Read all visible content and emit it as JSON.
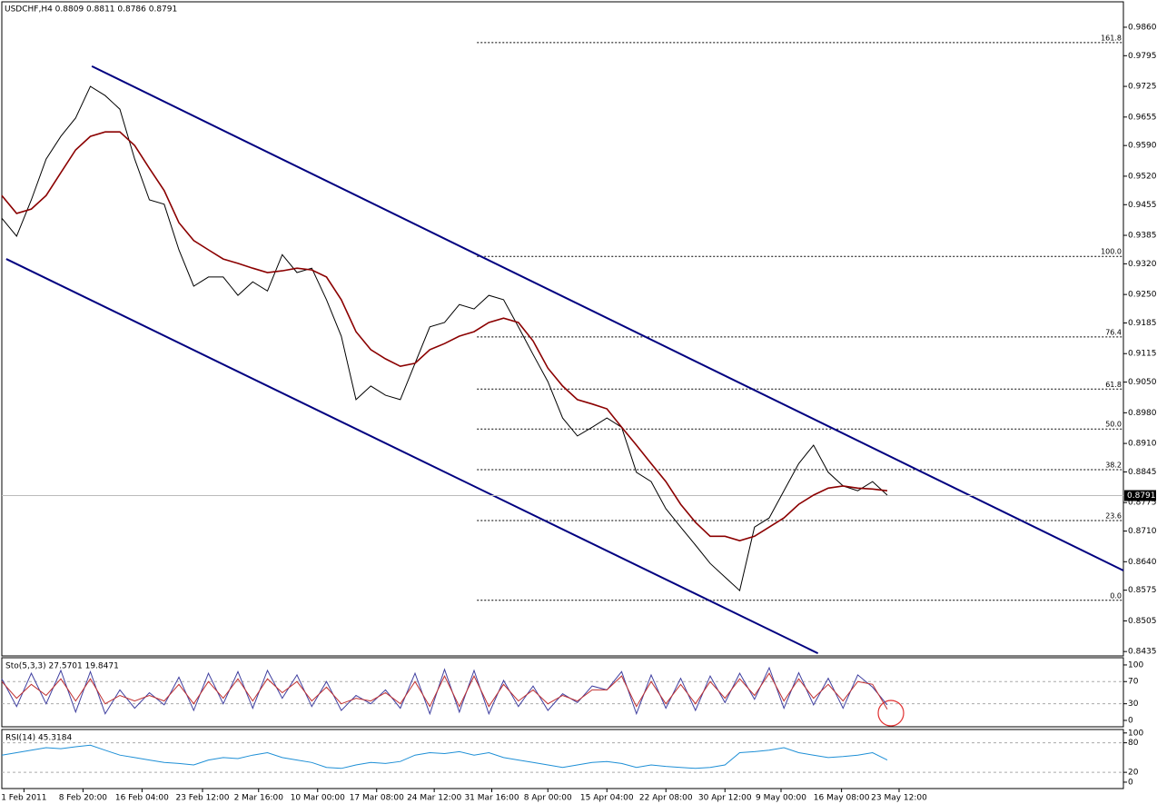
{
  "chart_data": [
    {
      "type": "line",
      "title": "USDCHF,H4  0.8809 0.8811 0.8786 0.8791",
      "x": [
        0,
        1,
        2,
        3,
        4,
        5,
        6,
        7,
        8,
        9,
        10,
        11,
        12,
        13,
        14,
        15,
        16,
        17,
        18,
        19,
        20,
        21,
        22,
        23,
        24,
        25,
        26,
        27,
        28,
        29,
        30,
        31,
        32,
        33,
        34,
        35,
        36,
        37,
        38,
        39,
        40,
        41,
        42,
        43,
        44,
        45,
        46,
        47,
        48,
        49,
        50,
        51,
        52,
        53,
        54,
        55,
        56,
        57,
        58,
        59,
        60
      ],
      "xlim": [
        0,
        76
      ],
      "xticks": [
        {
          "value": 1.5,
          "label": "1 Feb 2011"
        },
        {
          "value": 5.5,
          "label": "8 Feb 20:00"
        },
        {
          "value": 9.5,
          "label": "16 Feb 04:00"
        },
        {
          "value": 13.6,
          "label": "23 Feb 12:00"
        },
        {
          "value": 17.4,
          "label": "2 Mar 16:00"
        },
        {
          "value": 21.4,
          "label": "10 Mar 00:00"
        },
        {
          "value": 25.4,
          "label": "17 Mar 08:00"
        },
        {
          "value": 29.3,
          "label": "24 Mar 12:00"
        },
        {
          "value": 33.2,
          "label": "31 Mar 16:00"
        },
        {
          "value": 37.0,
          "label": "8 Apr 00:00"
        },
        {
          "value": 41.0,
          "label": "15 Apr 04:00"
        },
        {
          "value": 45.0,
          "label": "22 Apr 08:00"
        },
        {
          "value": 49.0,
          "label": "30 Apr 12:00"
        },
        {
          "value": 52.8,
          "label": "9 May 00:00"
        },
        {
          "value": 56.9,
          "label": "16 May 08:00"
        },
        {
          "value": 60.8,
          "label": "23 May 12:00"
        }
      ],
      "ylim": [
        0.8425,
        0.9918
      ],
      "yticks": [
        {
          "value": 0.986,
          "label": "0.9860"
        },
        0.9795,
        0.9725,
        0.9655,
        {
          "value": 0.959,
          "label": "0.9590"
        },
        {
          "value": 0.952,
          "label": "0.9520"
        },
        0.9455,
        0.9385,
        {
          "value": 0.932,
          "label": "0.9320"
        },
        {
          "value": 0.925,
          "label": "0.9250"
        },
        0.9185,
        0.9115,
        {
          "value": 0.905,
          "label": "0.9050"
        },
        {
          "value": 0.898,
          "label": "0.8980"
        },
        {
          "value": 0.891,
          "label": "0.8910"
        },
        0.8845,
        0.8775,
        {
          "value": 0.871,
          "label": "0.8710"
        },
        {
          "value": 0.864,
          "label": "0.8640"
        },
        0.8575,
        0.8505,
        0.8435
      ],
      "series": [
        {
          "color": "#000000",
          "values": [
            0.9424,
            0.9383,
            0.9466,
            0.9559,
            0.9611,
            0.9653,
            0.9725,
            0.9704,
            0.9673,
            0.9559,
            0.9466,
            0.9456,
            0.9352,
            0.9269,
            0.929,
            0.929,
            0.9248,
            0.9279,
            0.9258,
            0.9341,
            0.93,
            0.931,
            0.9238,
            0.9155,
            0.901,
            0.9041,
            0.902,
            0.901,
            0.9093,
            0.9176,
            0.9186,
            0.9227,
            0.9217,
            0.9248,
            0.9238,
            0.9176,
            0.9113,
            0.9051,
            0.8968,
            0.8927,
            0.8947,
            0.8968,
            0.8947,
            0.8844,
            0.8823,
            0.8761,
            0.8719,
            0.8678,
            0.8636,
            0.8605,
            0.8574,
            0.8719,
            0.874,
            0.8802,
            0.8864,
            0.8906,
            0.8844,
            0.8813,
            0.8802,
            0.8823,
            0.8792
          ]
        },
        {
          "color": "#8b0000",
          "values": [
            0.9476,
            0.9435,
            0.9445,
            0.9476,
            0.9528,
            0.958,
            0.9611,
            0.9621,
            0.9621,
            0.959,
            0.9538,
            0.9487,
            0.9414,
            0.9373,
            0.9352,
            0.9331,
            0.9321,
            0.931,
            0.93,
            0.9304,
            0.931,
            0.9306,
            0.929,
            0.9238,
            0.9165,
            0.9124,
            0.9103,
            0.9086,
            0.9093,
            0.9124,
            0.9138,
            0.9155,
            0.9165,
            0.9186,
            0.9196,
            0.9186,
            0.9144,
            0.9082,
            0.9041,
            0.901,
            0.9,
            0.8989,
            0.8947,
            0.8906,
            0.8864,
            0.8823,
            0.8771,
            0.873,
            0.8698,
            0.8698,
            0.8688,
            0.8698,
            0.8719,
            0.874,
            0.8771,
            0.8792,
            0.8808,
            0.8813,
            0.8808,
            0.8806,
            0.8802
          ]
        }
      ],
      "trendlines": [
        {
          "color": "#000080",
          "x": [
            6.1,
            76
          ],
          "y": [
            0.9771,
            0.862
          ]
        },
        {
          "color": "#000080",
          "x": [
            0.3,
            55.3
          ],
          "y": [
            0.9331,
            0.8431
          ]
        }
      ],
      "fib_start_x": 32.2,
      "fib_levels": [
        {
          "text": "161.8",
          "price": 0.9825
        },
        {
          "text": "100.0",
          "price": 0.9337
        },
        {
          "text": "76.4",
          "price": 0.9153
        },
        {
          "text": "61.8",
          "price": 0.9034
        },
        {
          "text": "50.0",
          "price": 0.8943
        },
        {
          "text": "38.2",
          "price": 0.885
        },
        {
          "text": "23.6",
          "price": 0.8734
        },
        {
          "text": "0.0",
          "price": 0.8552
        }
      ],
      "last_price": 0.8791
    },
    {
      "type": "line",
      "title": "Sto(5,3,3) 27.5701 19.8471",
      "ylim": [
        -11.5,
        113
      ],
      "yticks": [
        100,
        70,
        30,
        0
      ],
      "dashed_levels": [
        70,
        30
      ],
      "series": [
        {
          "color": "#4040a0",
          "values": [
            75,
            25,
            85,
            30,
            90,
            15,
            88,
            12,
            55,
            22,
            50,
            28,
            78,
            18,
            85,
            30,
            88,
            22,
            90,
            40,
            82,
            25,
            70,
            18,
            45,
            30,
            55,
            22,
            85,
            12,
            92,
            15,
            90,
            12,
            72,
            25,
            62,
            18,
            48,
            32,
            62,
            55,
            88,
            12,
            82,
            22,
            76,
            18,
            80,
            32,
            85,
            38,
            95,
            22,
            86,
            28,
            76,
            22,
            82,
            60,
            28
          ]
        },
        {
          "color": "#c03030",
          "values": [
            70,
            40,
            65,
            45,
            75,
            35,
            75,
            30,
            45,
            35,
            45,
            35,
            65,
            30,
            70,
            40,
            75,
            35,
            75,
            50,
            70,
            35,
            60,
            30,
            40,
            35,
            50,
            30,
            70,
            25,
            80,
            25,
            80,
            25,
            65,
            35,
            55,
            30,
            45,
            35,
            55,
            55,
            80,
            25,
            70,
            30,
            65,
            30,
            70,
            40,
            75,
            45,
            85,
            35,
            75,
            40,
            65,
            35,
            70,
            65,
            20
          ]
        }
      ]
    },
    {
      "type": "line",
      "title": "RSI(14) 45.3184",
      "ylim": [
        -13,
        107
      ],
      "yticks": [
        100,
        80,
        20,
        0
      ],
      "dashed_levels": [
        80,
        20
      ],
      "series": [
        {
          "color": "#1e8fd6",
          "values": [
            55,
            60,
            65,
            70,
            68,
            72,
            75,
            65,
            55,
            50,
            45,
            40,
            38,
            35,
            45,
            50,
            48,
            55,
            60,
            50,
            45,
            40,
            30,
            28,
            35,
            40,
            38,
            42,
            55,
            60,
            58,
            62,
            55,
            60,
            50,
            45,
            40,
            35,
            30,
            35,
            40,
            42,
            38,
            30,
            35,
            32,
            30,
            28,
            30,
            35,
            60,
            62,
            65,
            70,
            60,
            55,
            50,
            52,
            55,
            60,
            45
          ]
        }
      ]
    }
  ]
}
